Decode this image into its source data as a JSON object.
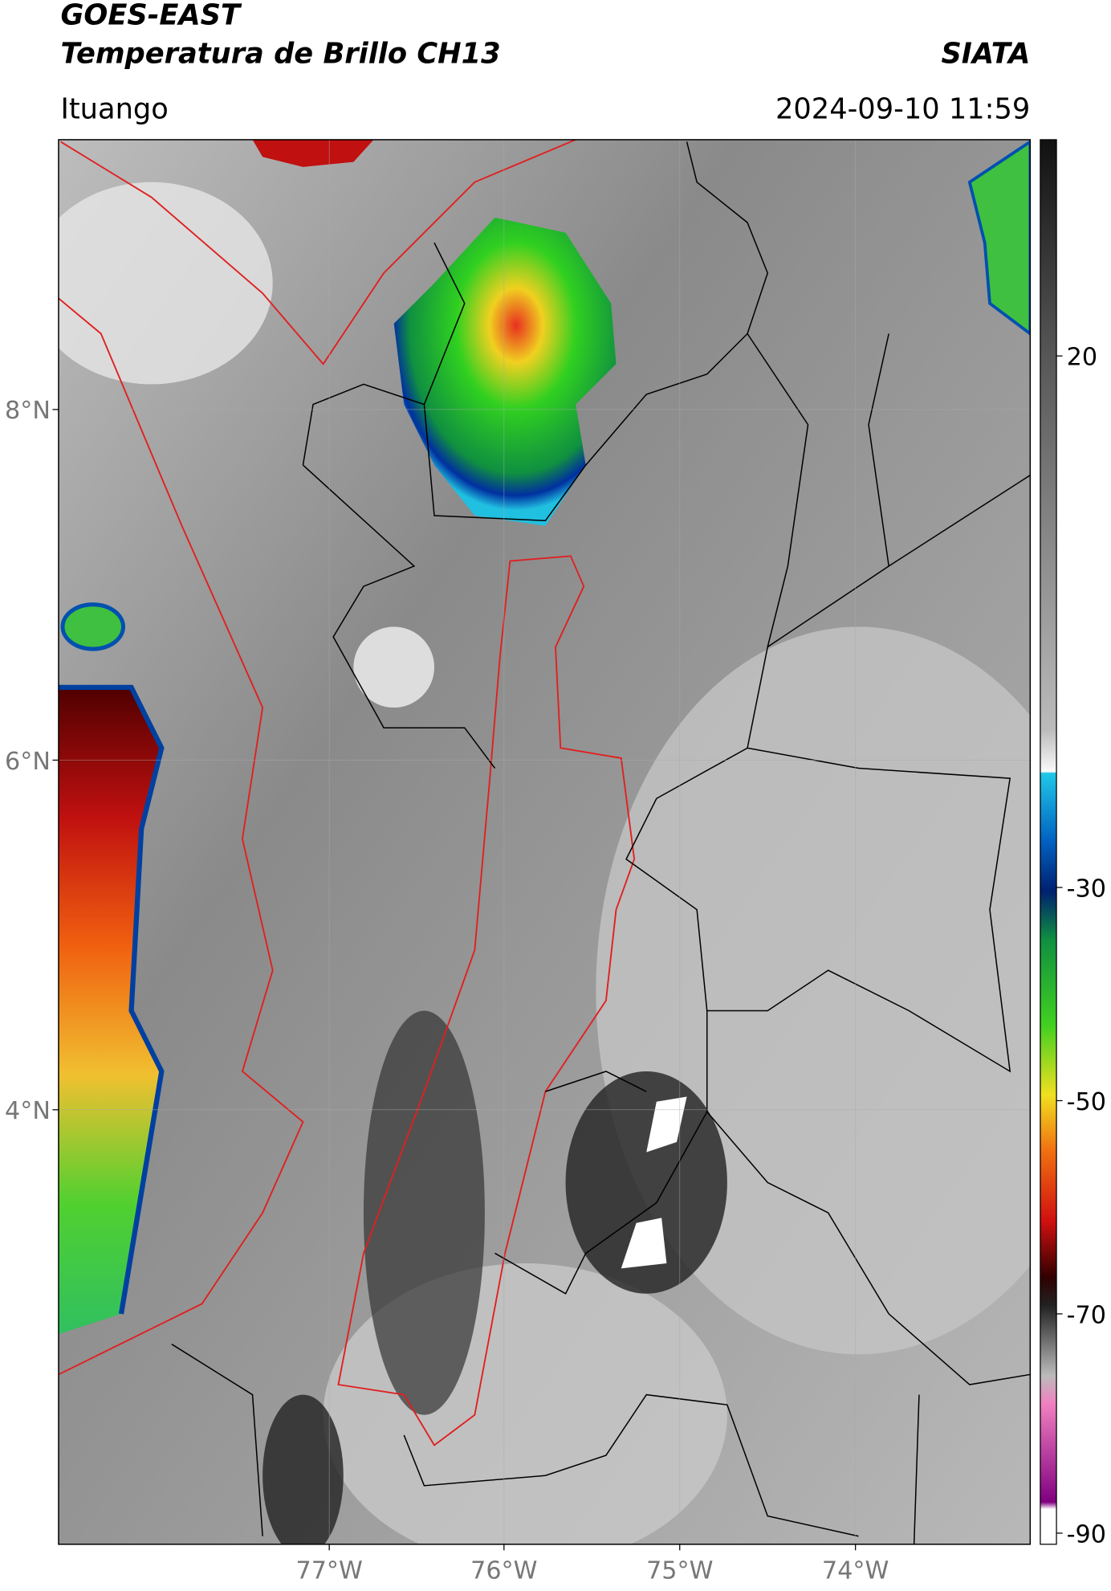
{
  "header": {
    "title": "GOES-EAST",
    "subtitle": "Temperatura de Brillo CH13",
    "source": "SIATA",
    "region": "Ituango",
    "datetime": "2024-09-10 11:59"
  },
  "map": {
    "lat_ticks": [
      "8°N",
      "6°N",
      "4°N"
    ],
    "lon_ticks": [
      "77°W",
      "76°W",
      "75°W",
      "74°W"
    ]
  },
  "colorbar": {
    "ticks": [
      "20",
      "-30",
      "-50",
      "-70",
      "-90"
    ]
  }
}
